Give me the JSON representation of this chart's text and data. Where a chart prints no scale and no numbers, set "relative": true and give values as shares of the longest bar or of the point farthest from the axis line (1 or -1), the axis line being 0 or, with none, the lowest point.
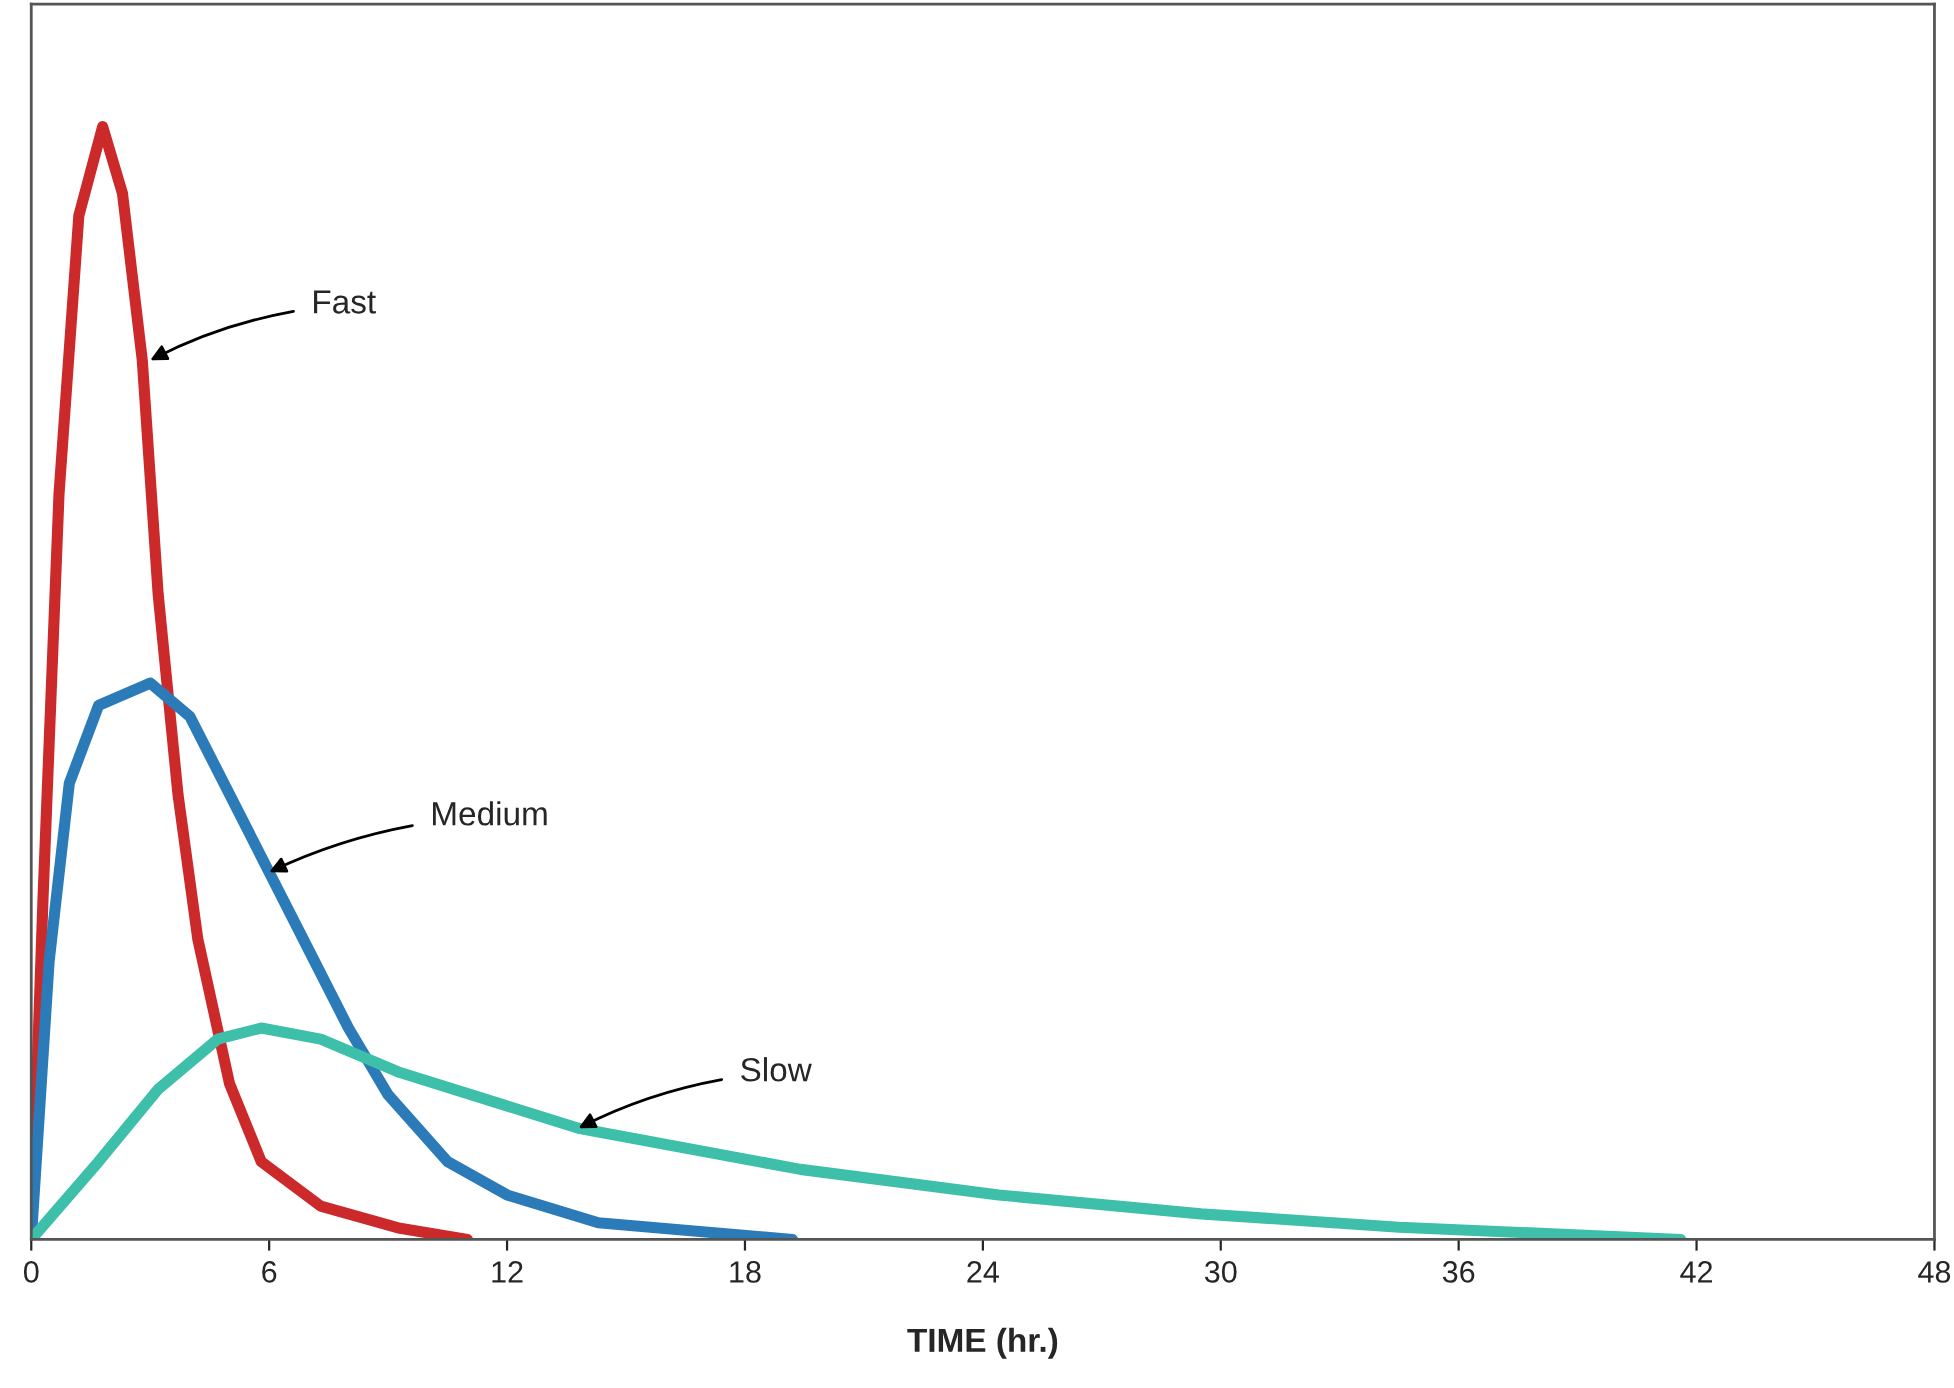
{
  "chart_data": {
    "type": "line",
    "relative": true,
    "xlabel": "TIME (hr.)",
    "xlim": [
      0,
      48
    ],
    "xticks": [
      0,
      6,
      12,
      18,
      24,
      30,
      36,
      42,
      48
    ],
    "grid": false,
    "tick_labels": "x",
    "series": [
      {
        "color": "#cc2a2a",
        "x": [
          0,
          0.3,
          0.7,
          1.2,
          1.8,
          2.3,
          2.8,
          3.2,
          3.7,
          4.2,
          5.0,
          5.8,
          7.3,
          9.3,
          11.0
        ],
        "values": [
          0,
          0.31,
          0.67,
          0.92,
          1.0,
          0.94,
          0.79,
          0.58,
          0.4,
          0.27,
          0.14,
          0.07,
          0.03,
          0.01,
          0
        ]
      },
      {
        "color": "#2b7bb9",
        "x": [
          0,
          0.45,
          0.96,
          1.7,
          3.0,
          4.0,
          5.0,
          6.0,
          7.0,
          8.0,
          9.0,
          10.5,
          12.0,
          14.3,
          19.2
        ],
        "values": [
          0,
          0.25,
          0.41,
          0.48,
          0.5,
          0.47,
          0.4,
          0.33,
          0.26,
          0.19,
          0.13,
          0.07,
          0.04,
          0.015,
          0
        ]
      },
      {
        "color": "#3dbfa9",
        "x": [
          0,
          1.7,
          3.2,
          4.7,
          5.8,
          7.3,
          9.3,
          13.8,
          19.4,
          24.4,
          29.5,
          34.5,
          41.6
        ],
        "values": [
          0,
          0.07,
          0.135,
          0.18,
          0.19,
          0.18,
          0.15,
          0.1,
          0.063,
          0.04,
          0.023,
          0.011,
          0
        ]
      }
    ],
    "annotations": [
      {
        "text": "Fast",
        "x": 3.0,
        "y": 0.79
      },
      {
        "text": "Medium",
        "x": 6.0,
        "y": 0.33
      },
      {
        "text": "Slow",
        "x": 13.8,
        "y": 0.1
      }
    ]
  }
}
